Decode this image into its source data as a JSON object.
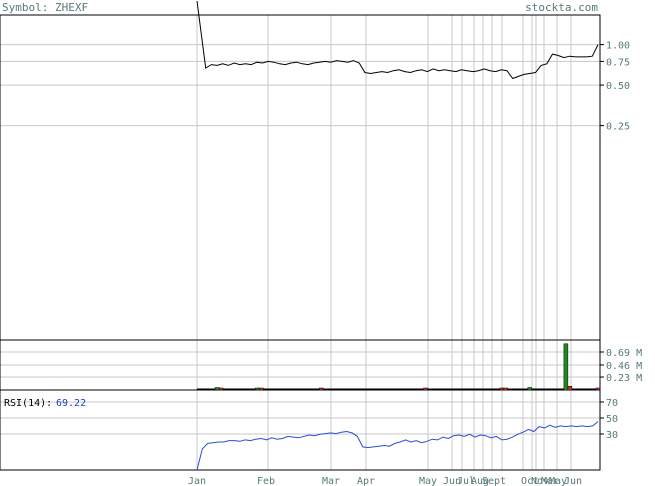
{
  "header": {
    "symbol_label": "Symbol: ZHEXF",
    "site": "stockta.com"
  },
  "chart_data": [
    {
      "type": "line",
      "panel": "price",
      "scale": "log",
      "y_ticks": [
        1.0,
        0.75,
        0.5,
        0.25
      ],
      "y_tick_labels": [
        "1.00",
        "0.75",
        "0.50",
        "0.25"
      ],
      "x_labels": [
        "Jan",
        "Feb",
        "Mar",
        "Apr",
        "May",
        "Jun",
        "Jul",
        "Aug",
        "Sept",
        "Oct",
        "Nov",
        "Mar",
        "May",
        "Jun"
      ],
      "values": [
        3.2,
        0.67,
        0.71,
        0.7,
        0.72,
        0.7,
        0.73,
        0.71,
        0.72,
        0.71,
        0.74,
        0.73,
        0.75,
        0.74,
        0.72,
        0.71,
        0.73,
        0.74,
        0.72,
        0.71,
        0.73,
        0.74,
        0.75,
        0.74,
        0.76,
        0.75,
        0.74,
        0.76,
        0.73,
        0.62,
        0.61,
        0.62,
        0.63,
        0.62,
        0.64,
        0.65,
        0.63,
        0.62,
        0.64,
        0.65,
        0.63,
        0.66,
        0.64,
        0.65,
        0.64,
        0.63,
        0.65,
        0.64,
        0.63,
        0.64,
        0.66,
        0.64,
        0.63,
        0.65,
        0.64,
        0.56,
        0.58,
        0.6,
        0.61,
        0.62,
        0.7,
        0.72,
        0.85,
        0.83,
        0.8,
        0.82,
        0.81,
        0.81,
        0.81,
        0.82,
        1.0
      ]
    },
    {
      "type": "bar",
      "panel": "volume",
      "y_tick_labels": [
        "0.69 M",
        "0.46 M",
        "0.23 M"
      ],
      "ylim": [
        0,
        0.8
      ],
      "bars": [
        {
          "pos": 0.05,
          "value": 0.04,
          "dir": "up"
        },
        {
          "pos": 0.06,
          "value": 0.03,
          "dir": "down"
        },
        {
          "pos": 0.15,
          "value": 0.03,
          "dir": "up"
        },
        {
          "pos": 0.16,
          "value": 0.03,
          "dir": "down"
        },
        {
          "pos": 0.31,
          "value": 0.03,
          "dir": "down"
        },
        {
          "pos": 0.57,
          "value": 0.03,
          "dir": "down"
        },
        {
          "pos": 0.76,
          "value": 0.03,
          "dir": "down"
        },
        {
          "pos": 0.77,
          "value": 0.02,
          "dir": "down"
        },
        {
          "pos": 0.83,
          "value": 0.04,
          "dir": "up"
        },
        {
          "pos": 0.92,
          "value": 0.74,
          "dir": "up"
        },
        {
          "pos": 0.93,
          "value": 0.06,
          "dir": "down"
        },
        {
          "pos": 1.0,
          "value": 0.02,
          "dir": "down"
        }
      ]
    },
    {
      "type": "line",
      "panel": "rsi",
      "label": "RSI(14):",
      "current": "69.22",
      "y_tick_labels": [
        "70",
        "50",
        "30"
      ],
      "ylim": [
        0,
        100
      ],
      "values": [
        0,
        30,
        38,
        39,
        40,
        40,
        42,
        42,
        41,
        43,
        42,
        44,
        45,
        43,
        46,
        44,
        45,
        48,
        47,
        46,
        48,
        50,
        49,
        51,
        52,
        53,
        52,
        54,
        55,
        53,
        48,
        33,
        32,
        33,
        34,
        35,
        34,
        38,
        40,
        43,
        40,
        42,
        39,
        41,
        44,
        43,
        47,
        45,
        49,
        50,
        48,
        51,
        47,
        50,
        49,
        46,
        48,
        43,
        44,
        47,
        51,
        54,
        58,
        55,
        62,
        60,
        64,
        61,
        63,
        62,
        63,
        62,
        63,
        62,
        63,
        69.22
      ]
    }
  ]
}
